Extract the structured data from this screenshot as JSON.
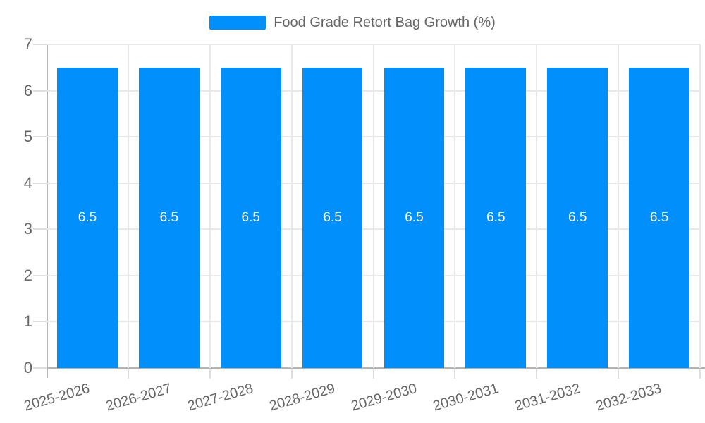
{
  "legend": {
    "position": "top",
    "items": [
      {
        "label": "Food Grade Retort Bag Growth (%)",
        "color": "#008FFB"
      }
    ]
  },
  "chart_data": {
    "type": "bar",
    "title": "",
    "xlabel": "",
    "ylabel": "",
    "categories": [
      "2025-2026",
      "2026-2027",
      "2027-2028",
      "2028-2029",
      "2029-2030",
      "2030-2031",
      "2031-2032",
      "2032-2033"
    ],
    "series": [
      {
        "name": "Food Grade Retort Bag Growth (%)",
        "values": [
          6.5,
          6.5,
          6.5,
          6.5,
          6.5,
          6.5,
          6.5,
          6.5
        ]
      }
    ],
    "ylim": [
      0,
      7
    ],
    "yticks": [
      "0",
      "1",
      "2",
      "3",
      "4",
      "5",
      "6",
      "7"
    ],
    "grid": "horizontal-and-vertical",
    "legend_position": "top-center",
    "bar_value_labels_shown": true,
    "colors": {
      "bar": "#008FFB",
      "bar_label": "#ffffff",
      "grid": "#e8e8e8",
      "axis": "#b3b3b3",
      "tick": "#dedede",
      "label": "#666666",
      "background": "#ffffff"
    }
  }
}
